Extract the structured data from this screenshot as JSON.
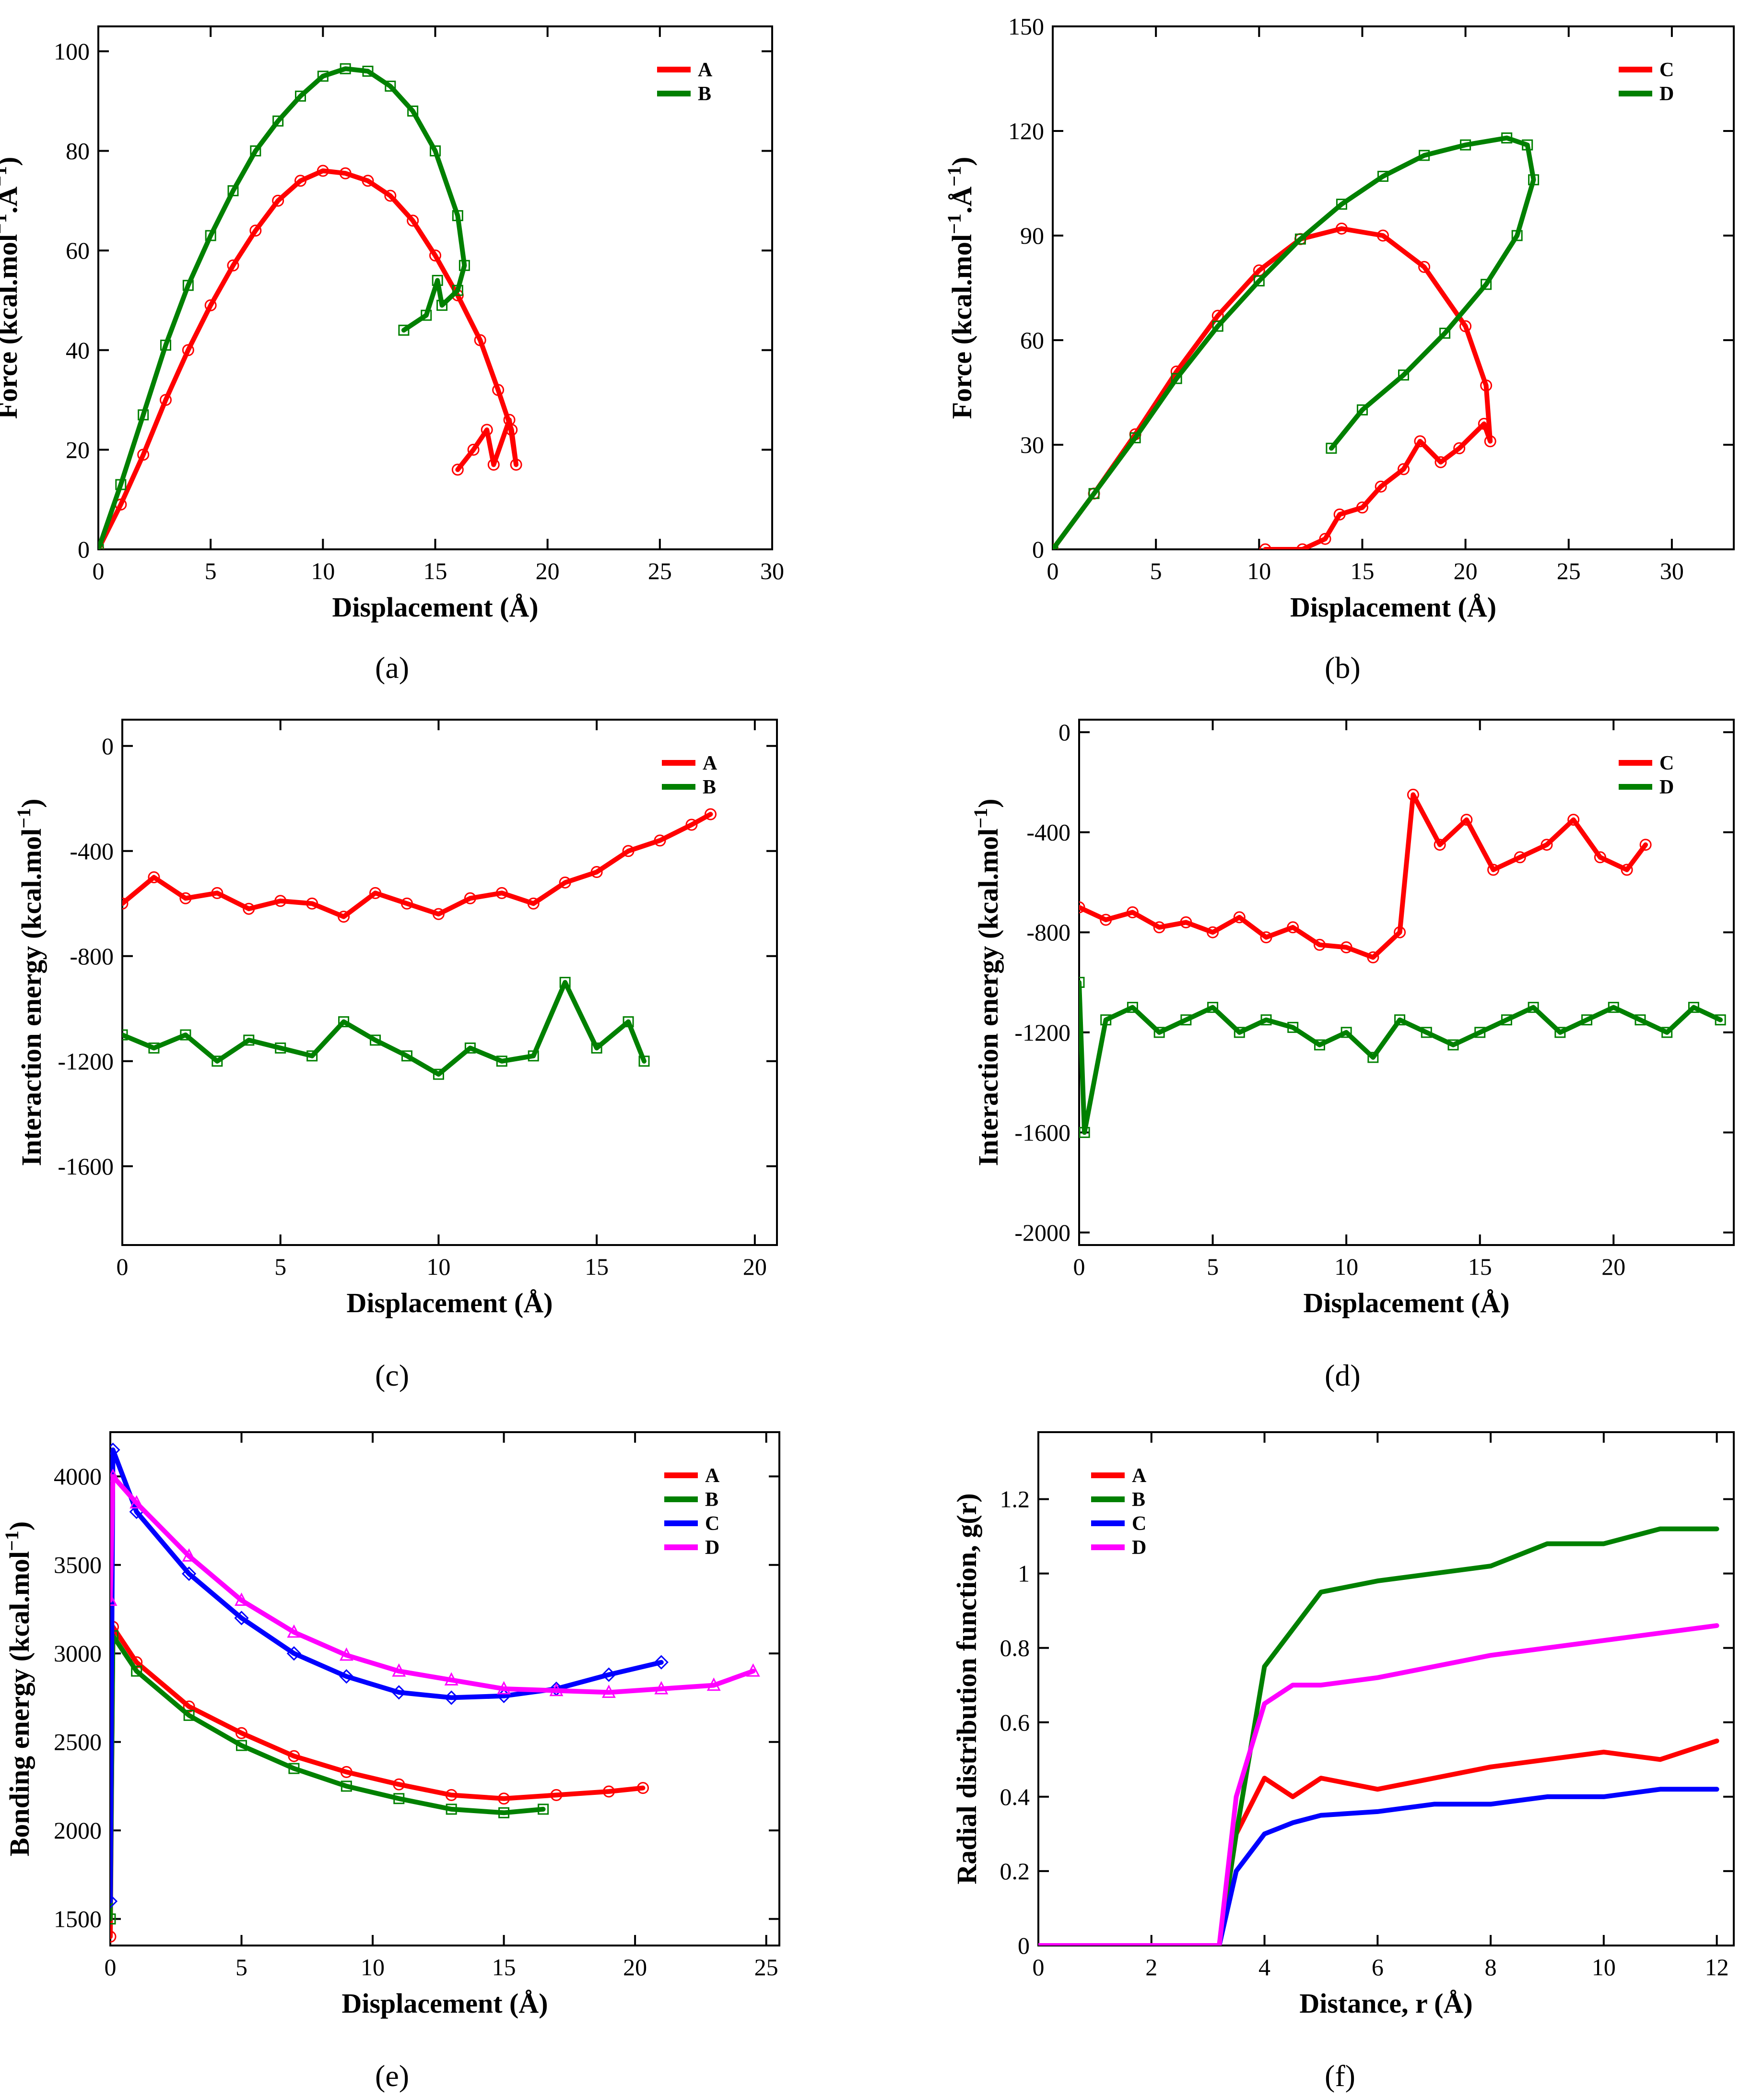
{
  "figure": {
    "captions": [
      "(a)",
      "(b)",
      "(c)",
      "(d)",
      "(e)",
      "(f)"
    ],
    "colors": {
      "A": "#ff0000",
      "B": "#008000",
      "C": "#0000ff",
      "D": "#ff00ff",
      "axis": "#000000"
    }
  },
  "chart_data": [
    {
      "id": "a",
      "type": "line",
      "caption": "(a)",
      "title": "",
      "xlabel": "Displacement (Å)",
      "ylabel": "Force (kcal.mol⁻¹.Å⁻¹)",
      "xlim": [
        0,
        30
      ],
      "ylim": [
        0,
        105
      ],
      "xticks": [
        0,
        5,
        10,
        15,
        20,
        25,
        30
      ],
      "yticks": [
        0,
        20,
        40,
        60,
        80,
        100
      ],
      "legend_position": "top-right",
      "series": [
        {
          "name": "A",
          "color": "#ff0000",
          "markers": "circle",
          "x": [
            0,
            1,
            2,
            3,
            4,
            5,
            6,
            7,
            8,
            9,
            10,
            11,
            12,
            13,
            14,
            15,
            16,
            17,
            17.8,
            18.4,
            18.6,
            18.3,
            17.6,
            17.3,
            16.7,
            16.0
          ],
          "y": [
            0,
            9,
            19,
            30,
            40,
            49,
            57,
            64,
            70,
            74,
            76,
            75.5,
            74,
            71,
            66,
            59,
            51,
            42,
            32,
            24,
            17,
            26,
            17,
            24,
            20,
            16
          ]
        },
        {
          "name": "B",
          "color": "#008000",
          "markers": "square",
          "x": [
            0,
            1,
            2,
            3,
            4,
            5,
            6,
            7,
            8,
            9,
            10,
            11,
            12,
            13,
            14,
            15,
            16,
            16.3,
            16.0,
            15.3,
            15.1,
            14.6,
            13.6
          ],
          "y": [
            0,
            13,
            27,
            41,
            53,
            63,
            72,
            80,
            86,
            91,
            95,
            96.5,
            96,
            93,
            88,
            80,
            67,
            57,
            52,
            49,
            54,
            47,
            44
          ]
        }
      ]
    },
    {
      "id": "b",
      "type": "line",
      "caption": "(b)",
      "title": "",
      "xlabel": "Displacement (Å)",
      "ylabel": "Force (kcal.mol⁻¹.Å⁻¹)",
      "xlim": [
        0,
        33
      ],
      "ylim": [
        0,
        150
      ],
      "xticks": [
        0,
        5,
        10,
        15,
        20,
        25,
        30
      ],
      "yticks": [
        0,
        30,
        60,
        90,
        120,
        150
      ],
      "legend_position": "top-right",
      "series": [
        {
          "name": "C",
          "color": "#ff0000",
          "markers": "circle",
          "x": [
            0,
            2,
            4,
            6,
            8,
            10,
            12,
            14,
            16,
            18,
            20,
            21,
            21.2,
            20.9,
            19.7,
            18.8,
            17.8,
            17.0,
            15.9,
            15.0,
            13.9,
            13.2,
            12.1,
            10.3
          ],
          "y": [
            0,
            16,
            33,
            51,
            67,
            80,
            89,
            92,
            90,
            81,
            64,
            47,
            31,
            36,
            29,
            25,
            31,
            23,
            18,
            12,
            10,
            3,
            0,
            0
          ]
        },
        {
          "name": "D",
          "color": "#008000",
          "markers": "square",
          "x": [
            0,
            2,
            4,
            6,
            8,
            10,
            12,
            14,
            16,
            18,
            20,
            22,
            23,
            23.3,
            22.5,
            21,
            19,
            17,
            15,
            13.5
          ],
          "y": [
            0,
            16,
            32,
            49,
            64,
            77,
            89,
            99,
            107,
            113,
            116,
            118,
            116,
            106,
            90,
            76,
            62,
            50,
            40,
            29
          ]
        }
      ]
    },
    {
      "id": "c",
      "type": "line",
      "caption": "(c)",
      "title": "",
      "xlabel": "Displacement (Å)",
      "ylabel": "Interaction energy (kcal.mol⁻¹)",
      "xlim": [
        0,
        20.7
      ],
      "ylim": [
        -1900,
        100
      ],
      "xticks": [
        0,
        5,
        10,
        15,
        20
      ],
      "yticks": [
        -1600,
        -1200,
        -800,
        -400,
        0
      ],
      "legend_position": "top-right",
      "series": [
        {
          "name": "A",
          "color": "#ff0000",
          "markers": "circle",
          "x": [
            0,
            1,
            2,
            3,
            4,
            5,
            6,
            7,
            8,
            9,
            10,
            11,
            12,
            13,
            14,
            15,
            16,
            17,
            18,
            18.6
          ],
          "y": [
            -600,
            -500,
            -580,
            -560,
            -620,
            -590,
            -600,
            -650,
            -560,
            -600,
            -640,
            -580,
            -560,
            -600,
            -520,
            -480,
            -400,
            -360,
            -300,
            -260
          ]
        },
        {
          "name": "B",
          "color": "#008000",
          "markers": "square",
          "x": [
            0,
            1,
            2,
            3,
            4,
            5,
            6,
            7,
            8,
            9,
            10,
            11,
            12,
            13,
            14,
            15,
            16,
            16.5
          ],
          "y": [
            -1100,
            -1150,
            -1100,
            -1200,
            -1120,
            -1150,
            -1180,
            -1050,
            -1120,
            -1180,
            -1250,
            -1150,
            -1200,
            -1180,
            -900,
            -1150,
            -1050,
            -1200
          ]
        }
      ]
    },
    {
      "id": "d",
      "type": "line",
      "caption": "(d)",
      "title": "",
      "xlabel": "Displacement (Å)",
      "ylabel": "Interaction energy (kcal.mol⁻¹)",
      "xlim": [
        0,
        24.5
      ],
      "ylim": [
        -2050,
        50
      ],
      "xticks": [
        0,
        5,
        10,
        15,
        20
      ],
      "yticks": [
        -2000,
        -1600,
        -1200,
        -800,
        -400,
        0
      ],
      "legend_position": "top-right",
      "series": [
        {
          "name": "C",
          "color": "#ff0000",
          "markers": "circle",
          "x": [
            0,
            1,
            2,
            3,
            4,
            5,
            6,
            7,
            8,
            9,
            10,
            11,
            12,
            12.5,
            13.5,
            14.5,
            15.5,
            16.5,
            17.5,
            18.5,
            19.5,
            20.5,
            21.2
          ],
          "y": [
            -700,
            -750,
            -720,
            -780,
            -760,
            -800,
            -740,
            -820,
            -780,
            -850,
            -860,
            -900,
            -800,
            -250,
            -450,
            -350,
            -550,
            -500,
            -450,
            -350,
            -500,
            -550,
            -450
          ]
        },
        {
          "name": "D",
          "color": "#008000",
          "markers": "square",
          "x": [
            0,
            0.2,
            1,
            2,
            3,
            4,
            5,
            6,
            7,
            8,
            9,
            10,
            11,
            12,
            13,
            14,
            15,
            16,
            17,
            18,
            19,
            20,
            21,
            22,
            23,
            24
          ],
          "y": [
            -1000,
            -1600,
            -1150,
            -1100,
            -1200,
            -1150,
            -1100,
            -1200,
            -1150,
            -1180,
            -1250,
            -1200,
            -1300,
            -1150,
            -1200,
            -1250,
            -1200,
            -1150,
            -1100,
            -1200,
            -1150,
            -1100,
            -1150,
            -1200,
            -1100,
            -1150
          ]
        }
      ]
    },
    {
      "id": "e",
      "type": "line",
      "caption": "(e)",
      "title": "",
      "xlabel": "Displacement (Å)",
      "ylabel": "Bonding energy (kcal.mol⁻¹)",
      "xlim": [
        0,
        25.5
      ],
      "ylim": [
        1350,
        4250
      ],
      "xticks": [
        0,
        5,
        10,
        15,
        20,
        25
      ],
      "yticks": [
        1500,
        2000,
        2500,
        3000,
        3500,
        4000
      ],
      "legend_position": "top-right",
      "series": [
        {
          "name": "A",
          "color": "#ff0000",
          "markers": "circle",
          "x": [
            0,
            0.1,
            1,
            3,
            5,
            7,
            9,
            11,
            13,
            15,
            17,
            19,
            20.3
          ],
          "y": [
            1400,
            3150,
            2950,
            2700,
            2550,
            2420,
            2330,
            2260,
            2200,
            2180,
            2200,
            2220,
            2240
          ]
        },
        {
          "name": "B",
          "color": "#008000",
          "markers": "square",
          "x": [
            0,
            0.1,
            1,
            3,
            5,
            7,
            9,
            11,
            13,
            15,
            16.5
          ],
          "y": [
            1500,
            3100,
            2900,
            2650,
            2480,
            2350,
            2250,
            2180,
            2120,
            2100,
            2120
          ]
        },
        {
          "name": "C",
          "color": "#0000ff",
          "markers": "diamond",
          "x": [
            0,
            0.1,
            1,
            3,
            5,
            7,
            9,
            11,
            13,
            15,
            17,
            19,
            21
          ],
          "y": [
            1600,
            4150,
            3800,
            3450,
            3200,
            3000,
            2870,
            2780,
            2750,
            2760,
            2800,
            2880,
            2950
          ]
        },
        {
          "name": "D",
          "color": "#ff00ff",
          "markers": "triangle",
          "x": [
            0,
            0.1,
            1,
            3,
            5,
            7,
            9,
            11,
            13,
            15,
            17,
            19,
            21,
            23,
            24.5
          ],
          "y": [
            3300,
            4000,
            3850,
            3550,
            3300,
            3120,
            2990,
            2900,
            2850,
            2800,
            2790,
            2780,
            2800,
            2820,
            2900
          ]
        }
      ]
    },
    {
      "id": "f",
      "type": "line",
      "caption": "(f)",
      "title": "",
      "xlabel": "Distance, r (Å)",
      "ylabel": "Radial distribution function, g(r)",
      "xlim": [
        0,
        12.3
      ],
      "ylim": [
        0,
        1.38
      ],
      "xticks": [
        0,
        2,
        4,
        6,
        8,
        10,
        12
      ],
      "yticks": [
        0,
        0.2,
        0.4,
        0.6,
        0.8,
        1,
        1.2
      ],
      "xtick_labels": [
        "0",
        "2",
        "4",
        "6",
        "8",
        "10",
        "12"
      ],
      "ytick_labels": [
        "0",
        "0.2",
        "0.4",
        "0.6",
        "0.8",
        "1",
        "1.2"
      ],
      "legend_position": "top-left",
      "series": [
        {
          "name": "A",
          "color": "#ff0000",
          "markers": "none",
          "x": [
            0,
            3.2,
            3.5,
            4,
            4.5,
            5,
            6,
            7,
            8,
            9,
            10,
            11,
            12
          ],
          "y": [
            0,
            0,
            0.3,
            0.45,
            0.4,
            0.45,
            0.42,
            0.45,
            0.48,
            0.5,
            0.52,
            0.5,
            0.55
          ]
        },
        {
          "name": "B",
          "color": "#008000",
          "markers": "none",
          "x": [
            0,
            3.2,
            3.5,
            4,
            4.5,
            5,
            6,
            7,
            8,
            9,
            10,
            11,
            12
          ],
          "y": [
            0,
            0,
            0.3,
            0.75,
            0.85,
            0.95,
            0.98,
            1.0,
            1.02,
            1.08,
            1.08,
            1.12,
            1.12
          ]
        },
        {
          "name": "C",
          "color": "#0000ff",
          "markers": "none",
          "x": [
            0,
            3.2,
            3.5,
            4,
            4.5,
            5,
            6,
            7,
            8,
            9,
            10,
            11,
            12
          ],
          "y": [
            0,
            0,
            0.2,
            0.3,
            0.33,
            0.35,
            0.36,
            0.38,
            0.38,
            0.4,
            0.4,
            0.42,
            0.42
          ]
        },
        {
          "name": "D",
          "color": "#ff00ff",
          "markers": "none",
          "x": [
            0,
            3.2,
            3.5,
            4,
            4.5,
            5,
            6,
            7,
            8,
            9,
            10,
            11,
            12
          ],
          "y": [
            0,
            0,
            0.4,
            0.65,
            0.7,
            0.7,
            0.72,
            0.75,
            0.78,
            0.8,
            0.82,
            0.84,
            0.86
          ]
        }
      ]
    }
  ]
}
